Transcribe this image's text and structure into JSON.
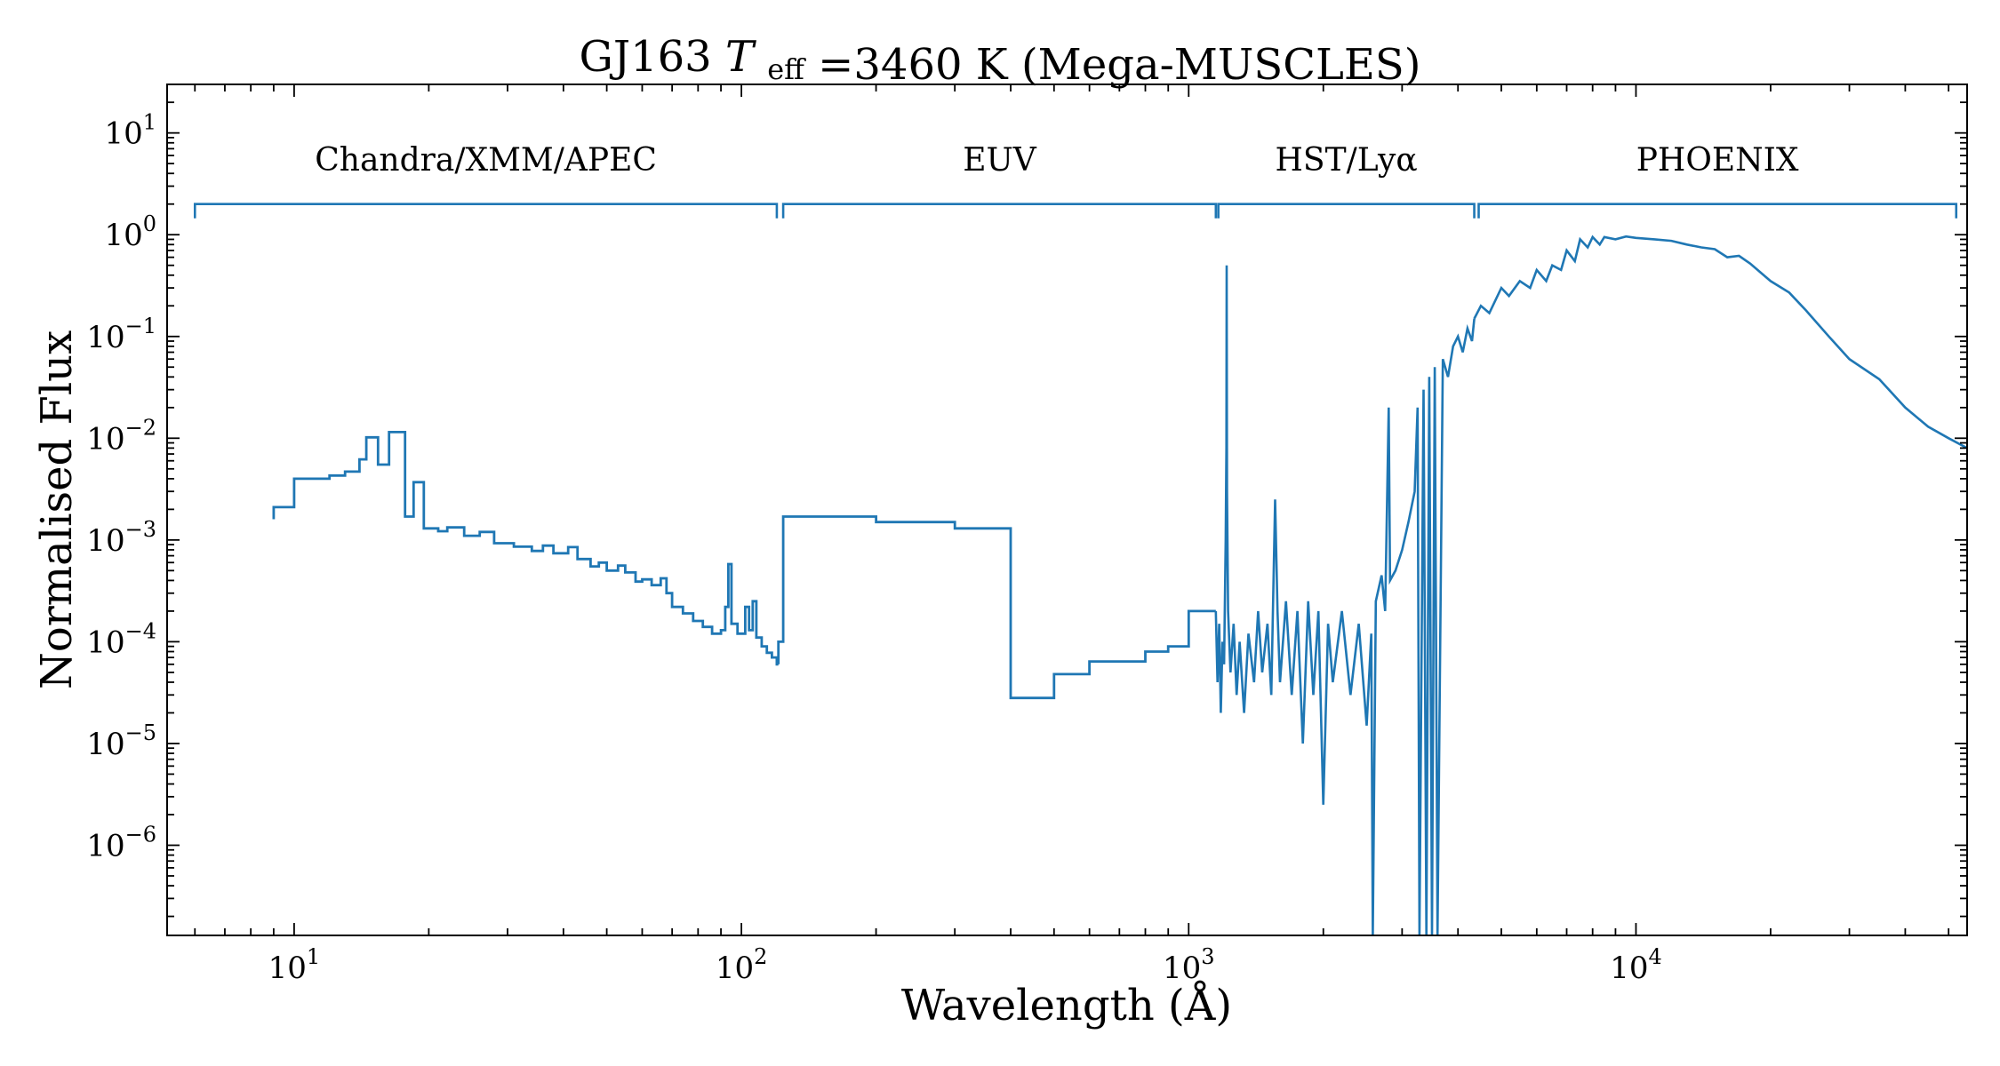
{
  "chart_data": {
    "type": "line",
    "title": {
      "star": "GJ163",
      "teff_symbol": "T",
      "teff_subscript": "eff",
      "teff_value": "=3460 K",
      "survey": "(Mega-MUSCLES)"
    },
    "xlabel": "Wavelength (Å)",
    "ylabel": "Normalised Flux",
    "xscale": "log",
    "yscale": "log",
    "xlim": [
      5.2,
      55000
    ],
    "ylim": [
      1.3e-07,
      30
    ],
    "x_ticks": [
      {
        "value": 10,
        "base": "10",
        "exp": "1"
      },
      {
        "value": 100,
        "base": "10",
        "exp": "2"
      },
      {
        "value": 1000,
        "base": "10",
        "exp": "3"
      },
      {
        "value": 10000,
        "base": "10",
        "exp": "4"
      }
    ],
    "y_ticks": [
      {
        "value": 1e-06,
        "base": "10",
        "exp": "−6"
      },
      {
        "value": 1e-05,
        "base": "10",
        "exp": "−5"
      },
      {
        "value": 0.0001,
        "base": "10",
        "exp": "−4"
      },
      {
        "value": 0.001,
        "base": "10",
        "exp": "−3"
      },
      {
        "value": 0.01,
        "base": "10",
        "exp": "−2"
      },
      {
        "value": 0.1,
        "base": "10",
        "exp": "−1"
      },
      {
        "value": 1,
        "base": "10",
        "exp": "0"
      },
      {
        "value": 10,
        "base": "10",
        "exp": "1"
      }
    ],
    "grid": false,
    "line_color": "#1f77b4",
    "regions": [
      {
        "label": "Chandra/XMM/APEC",
        "x_start": 6,
        "x_end": 120
      },
      {
        "label": "EUV",
        "x_start": 124,
        "x_end": 1150
      },
      {
        "label": "HST/Lyα",
        "x_start": 1165,
        "x_end": 4350
      },
      {
        "label": "PHOENIX",
        "x_start": 4450,
        "x_end": 52000
      }
    ],
    "region_bracket_y": 2.0,
    "series": [
      {
        "segment": "x-ray",
        "drawstyle": "steps",
        "points": [
          [
            9,
            0.0016
          ],
          [
            9,
            0.0021
          ],
          [
            10,
            0.0021
          ],
          [
            10,
            0.004
          ],
          [
            12,
            0.004
          ],
          [
            12,
            0.0043
          ],
          [
            13,
            0.0043
          ],
          [
            13,
            0.0047
          ],
          [
            14,
            0.0047
          ],
          [
            14,
            0.0062
          ],
          [
            14.5,
            0.0062
          ],
          [
            14.5,
            0.0102
          ],
          [
            15.4,
            0.0102
          ],
          [
            15.4,
            0.0055
          ],
          [
            16.3,
            0.0055
          ],
          [
            16.3,
            0.0115
          ],
          [
            17.7,
            0.0115
          ],
          [
            17.7,
            0.0017
          ],
          [
            18.5,
            0.0017
          ],
          [
            18.5,
            0.0037
          ],
          [
            19.5,
            0.0037
          ],
          [
            19.5,
            0.0013
          ],
          [
            21,
            0.0013
          ],
          [
            21,
            0.00122
          ],
          [
            22,
            0.00122
          ],
          [
            22,
            0.00133
          ],
          [
            24,
            0.00133
          ],
          [
            24,
            0.0011
          ],
          [
            26,
            0.0011
          ],
          [
            26,
            0.0012
          ],
          [
            28,
            0.0012
          ],
          [
            28,
            0.00093
          ],
          [
            31,
            0.00093
          ],
          [
            31,
            0.00086
          ],
          [
            34,
            0.00086
          ],
          [
            34,
            0.00078
          ],
          [
            36,
            0.00078
          ],
          [
            36,
            0.00088
          ],
          [
            38,
            0.00088
          ],
          [
            38,
            0.00074
          ],
          [
            41,
            0.00074
          ],
          [
            41,
            0.00085
          ],
          [
            43,
            0.00085
          ],
          [
            43,
            0.00065
          ],
          [
            46,
            0.00065
          ],
          [
            46,
            0.00055
          ],
          [
            48,
            0.00055
          ],
          [
            48,
            0.0006
          ],
          [
            50,
            0.0006
          ],
          [
            50,
            0.0005
          ],
          [
            53,
            0.0005
          ],
          [
            53,
            0.00056
          ],
          [
            55,
            0.00056
          ],
          [
            55,
            0.00048
          ],
          [
            58,
            0.00048
          ],
          [
            58,
            0.00039
          ],
          [
            60,
            0.00039
          ],
          [
            60,
            0.00041
          ],
          [
            63,
            0.00041
          ],
          [
            63,
            0.00036
          ],
          [
            66,
            0.00036
          ],
          [
            66,
            0.00042
          ],
          [
            68,
            0.00042
          ],
          [
            68,
            0.0003
          ],
          [
            70,
            0.0003
          ],
          [
            70,
            0.00022
          ],
          [
            74,
            0.00022
          ],
          [
            74,
            0.00019
          ],
          [
            78,
            0.00019
          ],
          [
            78,
            0.00016
          ],
          [
            82,
            0.00016
          ],
          [
            82,
            0.00014
          ],
          [
            86,
            0.00014
          ],
          [
            86,
            0.00012
          ],
          [
            90,
            0.00012
          ],
          [
            90,
            0.00013
          ],
          [
            92,
            0.00013
          ],
          [
            92,
            0.00022
          ],
          [
            93.5,
            0.00022
          ],
          [
            93.5,
            0.00058
          ],
          [
            95,
            0.00058
          ],
          [
            95,
            0.00015
          ],
          [
            98,
            0.00015
          ],
          [
            98,
            0.00012
          ],
          [
            102,
            0.00012
          ],
          [
            102,
            0.00022
          ],
          [
            104,
            0.00022
          ],
          [
            104,
            0.00013
          ],
          [
            106,
            0.00013
          ],
          [
            106,
            0.00025
          ],
          [
            108,
            0.00025
          ],
          [
            108,
            0.00011
          ],
          [
            111,
            0.00011
          ],
          [
            111,
            9e-05
          ],
          [
            114,
            9e-05
          ],
          [
            114,
            7.8e-05
          ],
          [
            117,
            7.8e-05
          ],
          [
            117,
            7e-05
          ],
          [
            120,
            7e-05
          ],
          [
            120,
            6e-05
          ],
          [
            121,
            6e-05
          ]
        ]
      },
      {
        "segment": "euv",
        "drawstyle": "steps",
        "points": [
          [
            121,
            6e-05
          ],
          [
            121,
            0.0001
          ],
          [
            124,
            0.0001
          ],
          [
            124,
            0.0017
          ],
          [
            200,
            0.0017
          ],
          [
            200,
            0.0015
          ],
          [
            300,
            0.0015
          ],
          [
            300,
            0.0013
          ],
          [
            400,
            0.0013
          ],
          [
            400,
            2.8e-05
          ],
          [
            500,
            2.8e-05
          ],
          [
            500,
            4.8e-05
          ],
          [
            600,
            4.8e-05
          ],
          [
            600,
            6.4e-05
          ],
          [
            800,
            6.4e-05
          ],
          [
            800,
            8e-05
          ],
          [
            900,
            8e-05
          ],
          [
            900,
            9e-05
          ],
          [
            1000,
            9e-05
          ],
          [
            1000,
            0.0002
          ],
          [
            1150,
            0.0002
          ]
        ]
      },
      {
        "segment": "hst",
        "drawstyle": "line",
        "points": [
          [
            1150,
            0.0002
          ],
          [
            1160,
            4e-05
          ],
          [
            1170,
            0.00015
          ],
          [
            1180,
            2e-05
          ],
          [
            1190,
            0.0001
          ],
          [
            1200,
            6e-05
          ],
          [
            1210,
            0.001
          ],
          [
            1214,
            0.008
          ],
          [
            1216,
            0.5
          ],
          [
            1218,
            0.003
          ],
          [
            1225,
            0.0002
          ],
          [
            1240,
            5e-05
          ],
          [
            1260,
            0.00015
          ],
          [
            1280,
            3e-05
          ],
          [
            1300,
            0.0001
          ],
          [
            1330,
            2e-05
          ],
          [
            1360,
            0.00012
          ],
          [
            1400,
            4e-05
          ],
          [
            1430,
            0.0002
          ],
          [
            1460,
            5e-05
          ],
          [
            1500,
            0.00015
          ],
          [
            1530,
            3e-05
          ],
          [
            1560,
            0.0025
          ],
          [
            1580,
            0.0002
          ],
          [
            1600,
            4e-05
          ],
          [
            1650,
            0.00025
          ],
          [
            1700,
            3e-05
          ],
          [
            1750,
            0.0002
          ],
          [
            1800,
            1e-05
          ],
          [
            1850,
            0.00025
          ],
          [
            1900,
            3e-05
          ],
          [
            1950,
            0.0002
          ],
          [
            2000,
            2.5e-06
          ],
          [
            2050,
            0.00015
          ],
          [
            2100,
            4e-05
          ],
          [
            2200,
            0.0002
          ],
          [
            2300,
            3e-05
          ],
          [
            2400,
            0.00015
          ],
          [
            2500,
            1.5e-05
          ],
          [
            2560,
            0.00012
          ],
          [
            2580,
            1e-07
          ],
          [
            2620,
            0.00025
          ],
          [
            2700,
            0.00045
          ],
          [
            2750,
            0.0002
          ],
          [
            2800,
            0.02
          ],
          [
            2820,
            0.0004
          ],
          [
            2900,
            0.0005
          ],
          [
            3000,
            0.0008
          ],
          [
            3100,
            0.0015
          ],
          [
            3200,
            0.003
          ],
          [
            3250,
            0.02
          ],
          [
            3280,
            1e-07
          ],
          [
            3350,
            0.03
          ],
          [
            3400,
            1e-07
          ],
          [
            3450,
            0.04
          ],
          [
            3500,
            1e-07
          ],
          [
            3550,
            0.05
          ],
          [
            3600,
            1e-07
          ],
          [
            3700,
            0.06
          ],
          [
            3800,
            0.04
          ],
          [
            3900,
            0.08
          ],
          [
            4000,
            0.1
          ],
          [
            4100,
            0.07
          ],
          [
            4200,
            0.12
          ],
          [
            4300,
            0.09
          ],
          [
            4350,
            0.15
          ]
        ]
      },
      {
        "segment": "phoenix",
        "drawstyle": "line",
        "points": [
          [
            4350,
            0.15
          ],
          [
            4500,
            0.2
          ],
          [
            4700,
            0.17
          ],
          [
            5000,
            0.3
          ],
          [
            5200,
            0.25
          ],
          [
            5500,
            0.35
          ],
          [
            5800,
            0.3
          ],
          [
            6000,
            0.45
          ],
          [
            6300,
            0.35
          ],
          [
            6500,
            0.5
          ],
          [
            6800,
            0.45
          ],
          [
            7000,
            0.7
          ],
          [
            7300,
            0.55
          ],
          [
            7500,
            0.9
          ],
          [
            7800,
            0.75
          ],
          [
            8000,
            0.95
          ],
          [
            8300,
            0.8
          ],
          [
            8500,
            0.95
          ],
          [
            9000,
            0.9
          ],
          [
            9500,
            0.96
          ],
          [
            10000,
            0.93
          ],
          [
            11000,
            0.9
          ],
          [
            12000,
            0.87
          ],
          [
            13000,
            0.8
          ],
          [
            14000,
            0.75
          ],
          [
            15000,
            0.72
          ],
          [
            16000,
            0.6
          ],
          [
            17000,
            0.62
          ],
          [
            18000,
            0.52
          ],
          [
            20000,
            0.35
          ],
          [
            22000,
            0.27
          ],
          [
            24000,
            0.18
          ],
          [
            27000,
            0.1
          ],
          [
            30000,
            0.06
          ],
          [
            35000,
            0.038
          ],
          [
            40000,
            0.02
          ],
          [
            45000,
            0.013
          ],
          [
            50000,
            0.01
          ],
          [
            55000,
            0.008
          ]
        ]
      }
    ]
  }
}
